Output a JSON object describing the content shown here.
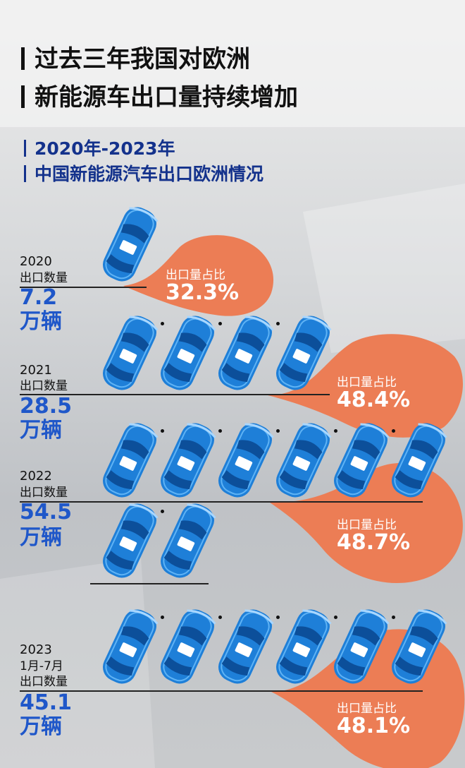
{
  "title_lines": [
    "过去三年我国对欧洲",
    "新能源车出口量持续增加"
  ],
  "subtitle_lines": [
    "2020年-2023年",
    "中国新能源汽车出口欧洲情况"
  ],
  "export_label": "出口数量",
  "unit_label": "万辆",
  "share_label": "出口量占比",
  "colors": {
    "car": "#1e7fd8",
    "share": "#ec7d55",
    "value_text": "#1f57c9",
    "subtitle": "#14328c"
  },
  "icon": "car-icon",
  "chart_data": {
    "type": "pictograph",
    "title": "过去三年我国对欧洲新能源车出口量持续增加",
    "subtitle": "2020年-2023年 中国新能源汽车出口欧洲情况",
    "categories": [
      "2020",
      "2021",
      "2022",
      "2023"
    ],
    "category_notes": [
      "",
      "",
      "",
      "1月-7月"
    ],
    "series": [
      {
        "name": "出口数量",
        "unit": "万辆",
        "values": [
          7.2,
          28.5,
          54.5,
          45.1
        ]
      },
      {
        "name": "出口量占比",
        "unit": "%",
        "values": [
          32.3,
          48.4,
          48.7,
          48.1
        ]
      }
    ],
    "value_labels": [
      "7.2",
      "28.5",
      "54.5",
      "45.1"
    ],
    "share_labels": [
      "32.3%",
      "48.4%",
      "48.7%",
      "48.1%"
    ],
    "car_icons_per_year": [
      1,
      4,
      8,
      6
    ]
  }
}
